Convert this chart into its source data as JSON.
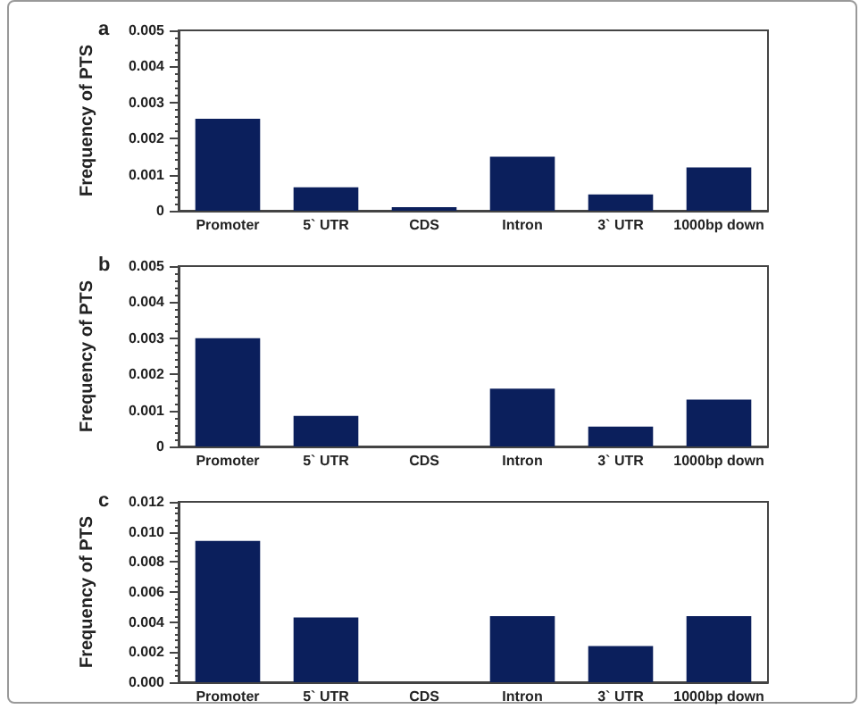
{
  "chart_data": [
    {
      "type": "bar",
      "title": "a",
      "ylabel": "Frequency of PTS",
      "categories": [
        "Promoter",
        "5` UTR",
        "CDS",
        "Intron",
        "3` UTR",
        "1000bp down"
      ],
      "color": "#0b1f5c",
      "values": [
        0.00255,
        0.00065,
        0.0001,
        0.0015,
        0.00045,
        0.0012
      ],
      "ylim": [
        0,
        0.005
      ],
      "yticks": [
        0,
        0.001,
        0.002,
        0.003,
        0.004,
        0.005
      ]
    },
    {
      "type": "bar",
      "title": "b",
      "ylabel": "Frequency of PTS",
      "categories": [
        "Promoter",
        "5` UTR",
        "CDS",
        "Intron",
        "3` UTR",
        "1000bp down"
      ],
      "color": "#0b1f5c",
      "values": [
        0.003,
        0.00085,
        0,
        0.0016,
        0.00055,
        0.0013
      ],
      "ylim": [
        0,
        0.005
      ],
      "yticks": [
        0,
        0.001,
        0.002,
        0.003,
        0.004,
        0.005
      ]
    },
    {
      "type": "bar",
      "title": "c",
      "ylabel": "Frequency of PTS",
      "categories": [
        "Promoter",
        "5` UTR",
        "CDS",
        "Intron",
        "3` UTR",
        "1000bp down"
      ],
      "color": "#0b1f5c",
      "values": [
        0.0094,
        0.0043,
        0,
        0.0044,
        0.0024,
        0.0044
      ],
      "ylim": [
        0,
        0.012
      ],
      "yticks": [
        {
          "value": 0,
          "label": "0.000"
        },
        {
          "value": 0.002,
          "label": "0.002"
        },
        {
          "value": 0.004,
          "label": "0.004"
        },
        {
          "value": 0.006,
          "label": "0.006"
        },
        {
          "value": 0.008,
          "label": "0.008"
        },
        {
          "value": 0.01,
          "label": "0.010"
        },
        {
          "value": 0.012,
          "label": "0.012"
        }
      ]
    }
  ]
}
